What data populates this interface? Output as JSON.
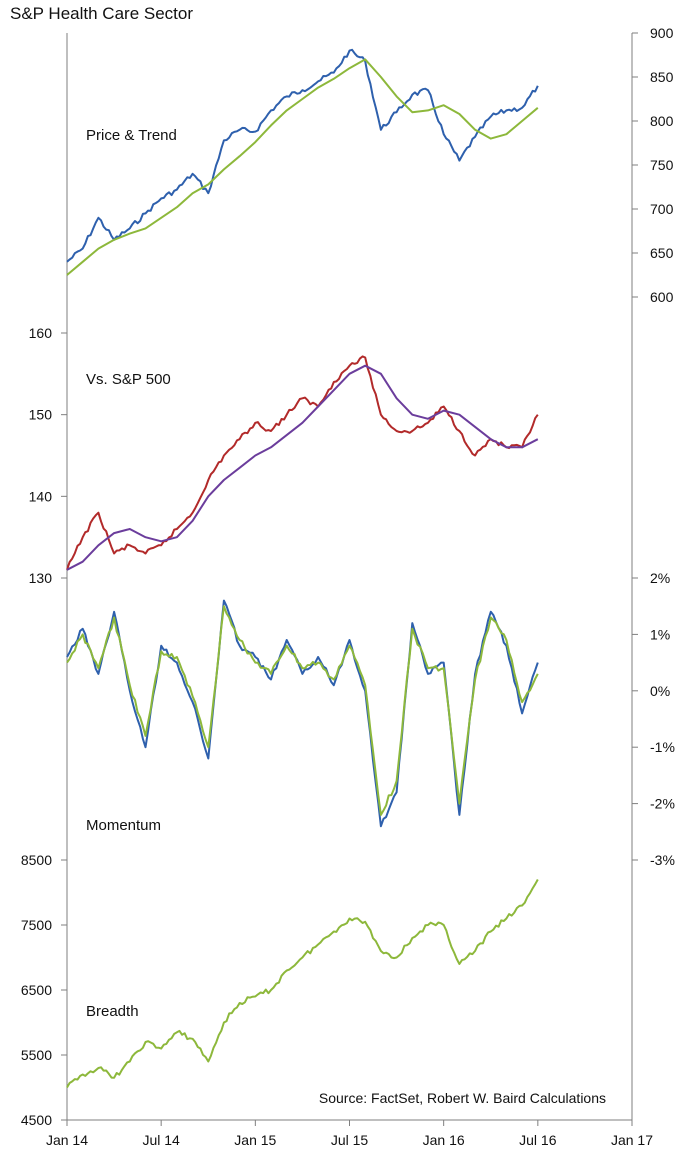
{
  "title": "S&P Health Care Sector",
  "source_text": "Source: FactSet, Robert W. Baird Calculations",
  "colors": {
    "blue": "#2e60ad",
    "green": "#8db83b",
    "red": "#b22a2a",
    "purple": "#6b3d9c",
    "axis": "#7f7f7f"
  },
  "chart_data": [
    {
      "type": "line",
      "panel": "Price & Trend",
      "label": "Price & Trend",
      "y_axis_side": "right",
      "ylim": [
        600,
        900
      ],
      "y_ticks": [
        "900",
        "850",
        "800",
        "750",
        "700",
        "650",
        "600"
      ],
      "x_ticks": [
        "Jan 14",
        "Jul 14",
        "Jan 15",
        "Jul 15",
        "Jan 16",
        "Jul 16",
        "Jan 17"
      ],
      "x_range": [
        "2014-01",
        "2017-01"
      ],
      "series": [
        {
          "color": "blue",
          "points": [
            [
              "2014-01",
              640
            ],
            [
              "2014-02",
              655
            ],
            [
              "2014-03",
              690
            ],
            [
              "2014-04",
              665
            ],
            [
              "2014-05",
              678
            ],
            [
              "2014-06",
              695
            ],
            [
              "2014-07",
              712
            ],
            [
              "2014-08",
              722
            ],
            [
              "2014-09",
              740
            ],
            [
              "2014-10",
              718
            ],
            [
              "2014-11",
              778
            ],
            [
              "2014-12",
              790
            ],
            [
              "2015-01",
              788
            ],
            [
              "2015-02",
              812
            ],
            [
              "2015-03",
              828
            ],
            [
              "2015-04",
              835
            ],
            [
              "2015-05",
              845
            ],
            [
              "2015-06",
              855
            ],
            [
              "2015-07",
              880
            ],
            [
              "2015-08",
              868
            ],
            [
              "2015-09",
              790
            ],
            [
              "2015-10",
              810
            ],
            [
              "2015-11",
              830
            ],
            [
              "2015-12",
              835
            ],
            [
              "2016-01",
              785
            ],
            [
              "2016-02",
              755
            ],
            [
              "2016-03",
              782
            ],
            [
              "2016-04",
              805
            ],
            [
              "2016-05",
              812
            ],
            [
              "2016-06",
              815
            ],
            [
              "2016-07",
              840
            ]
          ]
        },
        {
          "color": "green",
          "points": [
            [
              "2014-01",
              625
            ],
            [
              "2014-02",
              640
            ],
            [
              "2014-03",
              655
            ],
            [
              "2014-04",
              665
            ],
            [
              "2014-05",
              672
            ],
            [
              "2014-06",
              678
            ],
            [
              "2014-07",
              690
            ],
            [
              "2014-08",
              702
            ],
            [
              "2014-09",
              718
            ],
            [
              "2014-10",
              728
            ],
            [
              "2014-11",
              745
            ],
            [
              "2014-12",
              760
            ],
            [
              "2015-01",
              776
            ],
            [
              "2015-02",
              795
            ],
            [
              "2015-03",
              812
            ],
            [
              "2015-04",
              825
            ],
            [
              "2015-05",
              838
            ],
            [
              "2015-06",
              848
            ],
            [
              "2015-07",
              860
            ],
            [
              "2015-08",
              870
            ],
            [
              "2015-09",
              850
            ],
            [
              "2015-10",
              828
            ],
            [
              "2015-11",
              810
            ],
            [
              "2015-12",
              812
            ],
            [
              "2016-01",
              818
            ],
            [
              "2016-02",
              808
            ],
            [
              "2016-03",
              790
            ],
            [
              "2016-04",
              780
            ],
            [
              "2016-05",
              785
            ],
            [
              "2016-06",
              800
            ],
            [
              "2016-07",
              815
            ]
          ]
        }
      ]
    },
    {
      "type": "line",
      "panel": "Vs. S&P 500",
      "label": "Vs. S&P 500",
      "y_axis_side": "left",
      "ylim": [
        130,
        160
      ],
      "y_ticks": [
        "160",
        "150",
        "140",
        "130"
      ],
      "x_range": [
        "2014-01",
        "2017-01"
      ],
      "series": [
        {
          "color": "red",
          "points": [
            [
              "2014-01",
              131
            ],
            [
              "2014-02",
              135
            ],
            [
              "2014-03",
              138
            ],
            [
              "2014-04",
              133
            ],
            [
              "2014-05",
              134
            ],
            [
              "2014-06",
              133
            ],
            [
              "2014-07",
              134
            ],
            [
              "2014-08",
              136
            ],
            [
              "2014-09",
              138
            ],
            [
              "2014-10",
              142
            ],
            [
              "2014-11",
              145
            ],
            [
              "2014-12",
              147
            ],
            [
              "2015-01",
              149
            ],
            [
              "2015-02",
              148
            ],
            [
              "2015-03",
              150
            ],
            [
              "2015-04",
              152
            ],
            [
              "2015-05",
              151
            ],
            [
              "2015-06",
              154
            ],
            [
              "2015-07",
              156
            ],
            [
              "2015-08",
              157
            ],
            [
              "2015-09",
              150
            ],
            [
              "2015-10",
              148
            ],
            [
              "2015-11",
              148
            ],
            [
              "2015-12",
              149
            ],
            [
              "2016-01",
              151
            ],
            [
              "2016-02",
              148
            ],
            [
              "2016-03",
              145
            ],
            [
              "2016-04",
              147
            ],
            [
              "2016-05",
              146
            ],
            [
              "2016-06",
              146
            ],
            [
              "2016-07",
              150
            ]
          ]
        },
        {
          "color": "purple",
          "points": [
            [
              "2014-01",
              131
            ],
            [
              "2014-02",
              132
            ],
            [
              "2014-03",
              134
            ],
            [
              "2014-04",
              135.5
            ],
            [
              "2014-05",
              136
            ],
            [
              "2014-06",
              135
            ],
            [
              "2014-07",
              134.5
            ],
            [
              "2014-08",
              135
            ],
            [
              "2014-09",
              137
            ],
            [
              "2014-10",
              140
            ],
            [
              "2014-11",
              142
            ],
            [
              "2014-12",
              143.5
            ],
            [
              "2015-01",
              145
            ],
            [
              "2015-02",
              146
            ],
            [
              "2015-03",
              147.5
            ],
            [
              "2015-04",
              149
            ],
            [
              "2015-05",
              151
            ],
            [
              "2015-06",
              153
            ],
            [
              "2015-07",
              155
            ],
            [
              "2015-08",
              156
            ],
            [
              "2015-09",
              155
            ],
            [
              "2015-10",
              152
            ],
            [
              "2015-11",
              150
            ],
            [
              "2015-12",
              149.5
            ],
            [
              "2016-01",
              150.5
            ],
            [
              "2016-02",
              150
            ],
            [
              "2016-03",
              148.5
            ],
            [
              "2016-04",
              147
            ],
            [
              "2016-05",
              146
            ],
            [
              "2016-06",
              146
            ],
            [
              "2016-07",
              147
            ]
          ]
        }
      ]
    },
    {
      "type": "line",
      "panel": "Momentum",
      "label": "Momentum",
      "y_axis_side": "right",
      "ylim": [
        -3,
        2
      ],
      "y_ticks": [
        "2%",
        "1%",
        "0%",
        "-1%",
        "-2%",
        "-3%"
      ],
      "x_range": [
        "2014-01",
        "2017-01"
      ],
      "series": [
        {
          "color": "blue",
          "points": [
            [
              "2014-01",
              0.6
            ],
            [
              "2014-02",
              1.1
            ],
            [
              "2014-03",
              0.3
            ],
            [
              "2014-04",
              1.4
            ],
            [
              "2014-05",
              0.0
            ],
            [
              "2014-06",
              -1.0
            ],
            [
              "2014-07",
              0.8
            ],
            [
              "2014-08",
              0.5
            ],
            [
              "2014-09",
              -0.2
            ],
            [
              "2014-10",
              -1.2
            ],
            [
              "2014-11",
              1.6
            ],
            [
              "2014-12",
              0.8
            ],
            [
              "2015-01",
              0.6
            ],
            [
              "2015-02",
              0.2
            ],
            [
              "2015-03",
              0.9
            ],
            [
              "2015-04",
              0.3
            ],
            [
              "2015-05",
              0.6
            ],
            [
              "2015-06",
              0.1
            ],
            [
              "2015-07",
              0.9
            ],
            [
              "2015-08",
              0.0
            ],
            [
              "2015-09",
              -2.4
            ],
            [
              "2015-10",
              -1.8
            ],
            [
              "2015-11",
              1.2
            ],
            [
              "2015-12",
              0.3
            ],
            [
              "2016-01",
              0.5
            ],
            [
              "2016-02",
              -2.2
            ],
            [
              "2016-03",
              0.3
            ],
            [
              "2016-04",
              1.4
            ],
            [
              "2016-05",
              0.8
            ],
            [
              "2016-06",
              -0.4
            ],
            [
              "2016-07",
              0.5
            ]
          ]
        },
        {
          "color": "green",
          "points": [
            [
              "2014-01",
              0.5
            ],
            [
              "2014-02",
              1.0
            ],
            [
              "2014-03",
              0.4
            ],
            [
              "2014-04",
              1.3
            ],
            [
              "2014-05",
              0.1
            ],
            [
              "2014-06",
              -0.8
            ],
            [
              "2014-07",
              0.7
            ],
            [
              "2014-08",
              0.6
            ],
            [
              "2014-09",
              -0.1
            ],
            [
              "2014-10",
              -1.0
            ],
            [
              "2014-11",
              1.5
            ],
            [
              "2014-12",
              0.9
            ],
            [
              "2015-01",
              0.5
            ],
            [
              "2015-02",
              0.3
            ],
            [
              "2015-03",
              0.8
            ],
            [
              "2015-04",
              0.4
            ],
            [
              "2015-05",
              0.5
            ],
            [
              "2015-06",
              0.2
            ],
            [
              "2015-07",
              0.8
            ],
            [
              "2015-08",
              0.1
            ],
            [
              "2015-09",
              -2.2
            ],
            [
              "2015-10",
              -1.6
            ],
            [
              "2015-11",
              1.1
            ],
            [
              "2015-12",
              0.4
            ],
            [
              "2016-01",
              0.4
            ],
            [
              "2016-02",
              -2.0
            ],
            [
              "2016-03",
              0.2
            ],
            [
              "2016-04",
              1.3
            ],
            [
              "2016-05",
              0.9
            ],
            [
              "2016-06",
              -0.2
            ],
            [
              "2016-07",
              0.3
            ]
          ]
        }
      ]
    },
    {
      "type": "line",
      "panel": "Breadth",
      "label": "Breadth",
      "y_axis_side": "left",
      "ylim": [
        4500,
        8500
      ],
      "y_ticks": [
        "8500",
        "7500",
        "6500",
        "5500",
        "4500"
      ],
      "x_range": [
        "2014-01",
        "2017-01"
      ],
      "series": [
        {
          "color": "green",
          "points": [
            [
              "2014-01",
              5000
            ],
            [
              "2014-02",
              5200
            ],
            [
              "2014-03",
              5300
            ],
            [
              "2014-04",
              5150
            ],
            [
              "2014-05",
              5400
            ],
            [
              "2014-06",
              5700
            ],
            [
              "2014-07",
              5600
            ],
            [
              "2014-08",
              5850
            ],
            [
              "2014-09",
              5750
            ],
            [
              "2014-10",
              5400
            ],
            [
              "2014-11",
              6000
            ],
            [
              "2014-12",
              6300
            ],
            [
              "2015-01",
              6400
            ],
            [
              "2015-02",
              6500
            ],
            [
              "2015-03",
              6800
            ],
            [
              "2015-04",
              7000
            ],
            [
              "2015-05",
              7200
            ],
            [
              "2015-06",
              7400
            ],
            [
              "2015-07",
              7600
            ],
            [
              "2015-08",
              7550
            ],
            [
              "2015-09",
              7100
            ],
            [
              "2015-10",
              7000
            ],
            [
              "2015-11",
              7300
            ],
            [
              "2015-12",
              7500
            ],
            [
              "2016-01",
              7500
            ],
            [
              "2016-02",
              6900
            ],
            [
              "2016-03",
              7100
            ],
            [
              "2016-04",
              7400
            ],
            [
              "2016-05",
              7600
            ],
            [
              "2016-06",
              7800
            ],
            [
              "2016-07",
              8200
            ]
          ]
        }
      ]
    }
  ]
}
